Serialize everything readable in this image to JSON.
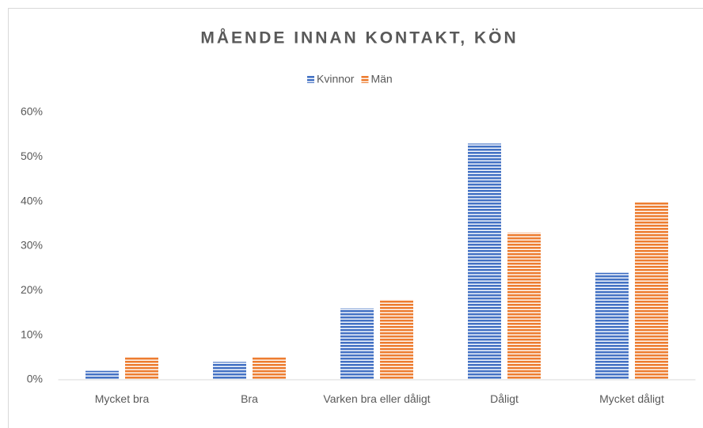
{
  "chart_data": {
    "type": "bar",
    "title": "MÅENDE INNAN KONTAKT, KÖN",
    "categories": [
      "Mycket bra",
      "Bra",
      "Varken bra eller dåligt",
      "Dåligt",
      "Mycket dåligt"
    ],
    "series": [
      {
        "name": "Kvinnor",
        "color": "#4472c4",
        "values": [
          2,
          4,
          16,
          53,
          24
        ]
      },
      {
        "name": "Män",
        "color": "#ed7d31",
        "values": [
          5,
          5,
          18,
          33,
          40
        ]
      }
    ],
    "ylim": [
      0,
      60
    ],
    "yticks": [
      {
        "value": 0,
        "label": "0%"
      },
      {
        "value": 10,
        "label": "10%"
      },
      {
        "value": 20,
        "label": "20%"
      },
      {
        "value": 30,
        "label": "30%"
      },
      {
        "value": 40,
        "label": "40%"
      },
      {
        "value": 50,
        "label": "50%"
      },
      {
        "value": 60,
        "label": "60%"
      }
    ],
    "grid": false,
    "legend": "top"
  }
}
